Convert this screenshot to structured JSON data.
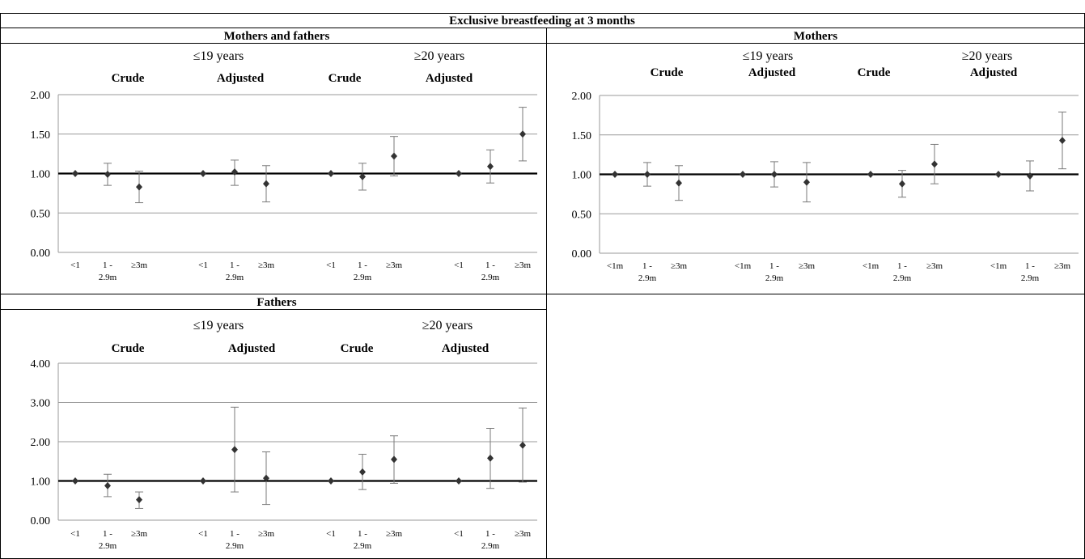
{
  "title": "Exclusive breastfeeding at 3 months",
  "colors": {
    "reference_line": "#000000",
    "gridline": "#9a9a9a",
    "marker": "#333333",
    "error_bar": "#7a7a7a"
  },
  "chart_data": [
    {
      "type": "scatter",
      "title": "Mothers and fathers",
      "age_groups": [
        "≤19 years",
        "≥20 years"
      ],
      "sub_groups": [
        "Crude",
        "Adjusted",
        "Crude",
        "Adjusted"
      ],
      "y_ticks": [
        "0.00",
        "0.50",
        "1.00",
        "1.50",
        "2.00"
      ],
      "ylim": [
        0,
        2
      ],
      "reference_value": 1,
      "grid": true,
      "groups": [
        {
          "labels": [
            "<1",
            "1 -|2.9m",
            "≥3m"
          ],
          "values": [
            1.0,
            0.99,
            0.83
          ],
          "lower": [
            1.0,
            0.85,
            0.63
          ],
          "upper": [
            1.0,
            1.13,
            1.03
          ]
        },
        {
          "labels": [
            "<1",
            "1 -|2.9m",
            "≥3m"
          ],
          "values": [
            1.0,
            1.02,
            0.87
          ],
          "lower": [
            1.0,
            0.85,
            0.64
          ],
          "upper": [
            1.0,
            1.17,
            1.1
          ]
        },
        {
          "labels": [
            "<1",
            "1 -|2.9m",
            "≥3m"
          ],
          "values": [
            1.0,
            0.96,
            1.22
          ],
          "lower": [
            1.0,
            0.79,
            0.97
          ],
          "upper": [
            1.0,
            1.13,
            1.47
          ]
        },
        {
          "labels": [
            "<1",
            "1 -|2.9m",
            "≥3m"
          ],
          "values": [
            1.0,
            1.09,
            1.5
          ],
          "lower": [
            1.0,
            0.88,
            1.16
          ],
          "upper": [
            1.0,
            1.3,
            1.84
          ]
        }
      ]
    },
    {
      "type": "scatter",
      "title": "Mothers",
      "age_groups": [
        "≤19 years",
        "≥20 years"
      ],
      "sub_groups": [
        "Crude",
        "Adjusted",
        "Crude",
        "Adjusted"
      ],
      "y_ticks": [
        "0.00",
        "0.50",
        "1.00",
        "1.50",
        "2.00"
      ],
      "ylim": [
        0,
        2
      ],
      "reference_value": 1,
      "grid": true,
      "groups": [
        {
          "labels": [
            "<1m",
            "1 -|2.9m",
            "≥3m"
          ],
          "values": [
            1.0,
            1.0,
            0.89
          ],
          "lower": [
            1.0,
            0.85,
            0.67
          ],
          "upper": [
            1.0,
            1.15,
            1.11
          ]
        },
        {
          "labels": [
            "<1m",
            "1 -|2.9m",
            "≥3m"
          ],
          "values": [
            1.0,
            1.0,
            0.9
          ],
          "lower": [
            1.0,
            0.84,
            0.65
          ],
          "upper": [
            1.0,
            1.16,
            1.15
          ]
        },
        {
          "labels": [
            "<1m",
            "1 -|2.9m",
            "≥3m"
          ],
          "values": [
            1.0,
            0.88,
            1.13
          ],
          "lower": [
            1.0,
            0.71,
            0.88
          ],
          "upper": [
            1.0,
            1.05,
            1.38
          ]
        },
        {
          "labels": [
            "<1m",
            "1 -|2.9m",
            "≥3m"
          ],
          "values": [
            1.0,
            0.98,
            1.43
          ],
          "lower": [
            1.0,
            0.79,
            1.07
          ],
          "upper": [
            1.0,
            1.17,
            1.79
          ]
        }
      ]
    },
    {
      "type": "scatter",
      "title": "Fathers",
      "age_groups": [
        "≤19 years",
        "≥20 years"
      ],
      "sub_groups": [
        "Crude",
        "Adjusted",
        "Crude",
        "Adjusted"
      ],
      "y_ticks": [
        "0.00",
        "1.00",
        "2.00",
        "3.00",
        "4.00"
      ],
      "ylim": [
        0,
        4
      ],
      "reference_value": 1,
      "grid": true,
      "groups": [
        {
          "labels": [
            "<1",
            "1 -|2.9m",
            "≥3m"
          ],
          "values": [
            1.0,
            0.88,
            0.52
          ],
          "lower": [
            1.0,
            0.6,
            0.3
          ],
          "upper": [
            1.0,
            1.17,
            0.72
          ]
        },
        {
          "labels": [
            "<1",
            "1 -|2.9m",
            "≥3m"
          ],
          "values": [
            1.0,
            1.8,
            1.07
          ],
          "lower": [
            1.0,
            0.72,
            0.4
          ],
          "upper": [
            1.0,
            2.88,
            1.74
          ]
        },
        {
          "labels": [
            "<1",
            "1 -|2.9m",
            "≥3m"
          ],
          "values": [
            1.0,
            1.23,
            1.55
          ],
          "lower": [
            1.0,
            0.78,
            0.94
          ],
          "upper": [
            1.0,
            1.68,
            2.15
          ]
        },
        {
          "labels": [
            "<1",
            "1 -|2.9m",
            "≥3m"
          ],
          "values": [
            1.0,
            1.58,
            1.91
          ],
          "lower": [
            1.0,
            0.81,
            0.97
          ],
          "upper": [
            1.0,
            2.34,
            2.86
          ]
        }
      ]
    }
  ]
}
